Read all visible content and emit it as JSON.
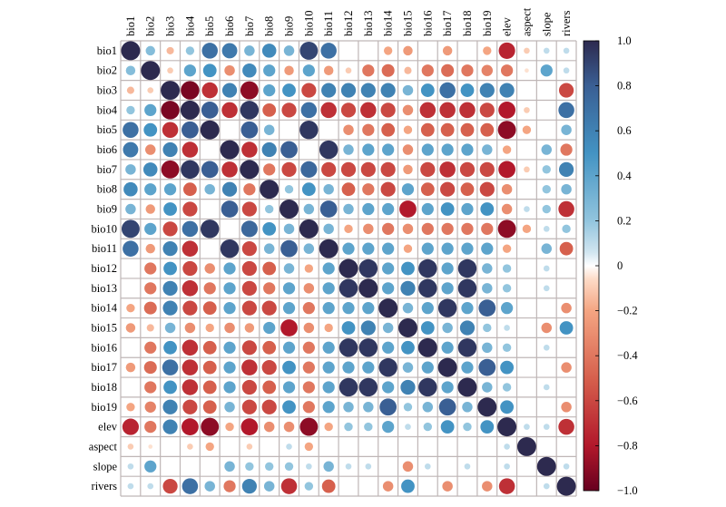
{
  "chart_data": {
    "type": "heatmap",
    "variables": [
      "bio1",
      "bio2",
      "bio3",
      "bio4",
      "bio5",
      "bio6",
      "bio7",
      "bio8",
      "bio9",
      "bio10",
      "bio11",
      "bio12",
      "bio13",
      "bio14",
      "bio15",
      "bio16",
      "bio17",
      "bio18",
      "bio19",
      "elev",
      "aspect",
      "slope",
      "rivers"
    ],
    "matrix": [
      [
        1.0,
        0.25,
        -0.15,
        0.2,
        0.7,
        0.65,
        0.3,
        0.55,
        0.3,
        0.9,
        0.7,
        0,
        0,
        -0.2,
        -0.25,
        0,
        -0.25,
        0,
        -0.2,
        -0.75,
        -0.1,
        0.1,
        0.1
      ],
      [
        0.25,
        1.0,
        -0.1,
        0.4,
        0.5,
        -0.3,
        0.55,
        0.4,
        -0.25,
        0.4,
        -0.25,
        -0.1,
        -0.4,
        -0.45,
        -0.15,
        -0.4,
        -0.45,
        -0.4,
        -0.35,
        -0.4,
        -0.05,
        0.4,
        0.1
      ],
      [
        -0.15,
        -0.1,
        1.0,
        -0.95,
        -0.7,
        0.6,
        -0.9,
        0.4,
        0.5,
        -0.6,
        0.6,
        0.6,
        0.6,
        0.6,
        0.3,
        0.5,
        0.7,
        0.5,
        0.6,
        0.6,
        0,
        0,
        -0.6
      ],
      [
        0.2,
        0.4,
        -0.95,
        1.0,
        0.8,
        -0.7,
        0.95,
        -0.5,
        -0.6,
        0.7,
        -0.7,
        -0.6,
        -0.7,
        -0.6,
        -0.3,
        -0.7,
        -0.7,
        -0.7,
        -0.6,
        -0.8,
        -0.1,
        0,
        0.7
      ],
      [
        0.7,
        0.5,
        -0.7,
        0.8,
        1.0,
        0,
        0.8,
        0.3,
        0,
        0.95,
        0,
        -0.3,
        -0.4,
        -0.5,
        -0.2,
        -0.5,
        -0.5,
        -0.5,
        -0.5,
        -0.9,
        -0.2,
        0,
        0.3
      ],
      [
        0.65,
        -0.3,
        0.6,
        -0.7,
        0,
        1.0,
        -0.7,
        0.6,
        0.8,
        0,
        0.95,
        0.3,
        0.4,
        0.4,
        -0.3,
        0.4,
        0.4,
        0.4,
        0.3,
        -0.2,
        0,
        0.3,
        -0.4
      ],
      [
        0.3,
        0.55,
        -0.9,
        0.95,
        0.8,
        -0.7,
        1.0,
        -0.4,
        -0.6,
        0.75,
        -0.6,
        -0.6,
        -0.6,
        -0.6,
        -0.25,
        -0.6,
        -0.7,
        -0.6,
        -0.6,
        -0.8,
        -0.1,
        0.2,
        0.6
      ],
      [
        0.55,
        0.4,
        0.4,
        -0.5,
        0.3,
        0.6,
        -0.4,
        1.0,
        0.2,
        0.5,
        0.3,
        -0.5,
        -0.4,
        -0.6,
        0.4,
        -0.5,
        -0.6,
        -0.5,
        -0.6,
        -0.3,
        0,
        0.2,
        0.3
      ],
      [
        0.3,
        -0.25,
        0.5,
        -0.6,
        0,
        0.8,
        -0.6,
        0.2,
        1.0,
        0.3,
        0.8,
        0.3,
        0.4,
        0.4,
        -0.8,
        0.4,
        0.5,
        0.4,
        0.5,
        -0.3,
        0.1,
        0.2,
        -0.7
      ],
      [
        0.9,
        0.4,
        -0.6,
        0.7,
        0.95,
        0,
        0.75,
        0.5,
        0.3,
        1.0,
        0.3,
        -0.2,
        -0.3,
        -0.4,
        -0.3,
        -0.4,
        -0.4,
        -0.4,
        -0.4,
        -0.9,
        -0.2,
        0.1,
        0.2
      ],
      [
        0.7,
        -0.25,
        0.6,
        -0.7,
        0,
        0.95,
        -0.6,
        0.3,
        0.8,
        0.3,
        1.0,
        0.4,
        0.4,
        0.4,
        -0.2,
        0.4,
        0.4,
        0.4,
        0.4,
        -0.2,
        0,
        0.3,
        -0.5
      ],
      [
        0,
        -0.4,
        0.5,
        -0.6,
        -0.3,
        0.4,
        -0.6,
        -0.5,
        0.3,
        -0.2,
        0.4,
        1.0,
        0.95,
        0.4,
        0.5,
        0.95,
        0.4,
        0.95,
        0.3,
        0.2,
        0,
        0.1,
        0
      ],
      [
        0,
        -0.4,
        0.6,
        -0.7,
        -0.4,
        0.4,
        -0.6,
        -0.4,
        0.4,
        -0.3,
        0.4,
        0.95,
        1.0,
        0.4,
        0.6,
        0.95,
        0.4,
        0.95,
        0.3,
        0.2,
        0,
        0.1,
        0
      ],
      [
        -0.2,
        -0.45,
        0.6,
        -0.6,
        -0.5,
        0.4,
        -0.6,
        -0.6,
        0.4,
        -0.4,
        0.4,
        0.4,
        0.4,
        1.0,
        0.3,
        0.4,
        0.95,
        0.4,
        0.8,
        0.4,
        0,
        0,
        -0.3
      ],
      [
        -0.25,
        -0.15,
        0.3,
        -0.3,
        -0.2,
        -0.3,
        -0.25,
        0.4,
        -0.8,
        -0.3,
        -0.2,
        0.5,
        0.6,
        0.3,
        1.0,
        0.5,
        0.3,
        0.6,
        0.2,
        0.1,
        0,
        -0.3,
        0.5
      ],
      [
        0,
        -0.4,
        0.5,
        -0.7,
        -0.5,
        0.4,
        -0.6,
        -0.5,
        0.4,
        -0.4,
        0.4,
        0.95,
        0.95,
        0.4,
        0.5,
        1.0,
        0.4,
        0.95,
        0.3,
        0.2,
        0,
        0.1,
        0
      ],
      [
        -0.25,
        -0.45,
        0.7,
        -0.7,
        -0.5,
        0.4,
        -0.7,
        -0.6,
        0.5,
        -0.4,
        0.4,
        0.4,
        0.4,
        0.95,
        0.3,
        0.4,
        1.0,
        0.4,
        0.8,
        0.5,
        0,
        0,
        -0.3
      ],
      [
        0,
        -0.4,
        0.5,
        -0.7,
        -0.5,
        0.4,
        -0.6,
        -0.5,
        0.4,
        -0.4,
        0.4,
        0.95,
        0.95,
        0.4,
        0.6,
        0.95,
        0.4,
        1.0,
        0.3,
        0.2,
        0,
        0.1,
        0
      ],
      [
        -0.2,
        -0.35,
        0.6,
        -0.6,
        -0.5,
        0.3,
        -0.6,
        -0.6,
        0.5,
        -0.4,
        0.4,
        0.3,
        0.3,
        0.8,
        0.2,
        0.3,
        0.8,
        0.3,
        1.0,
        0.5,
        0,
        0,
        -0.3
      ],
      [
        -0.75,
        -0.4,
        0.6,
        -0.8,
        -0.9,
        -0.2,
        -0.8,
        -0.3,
        -0.3,
        -0.9,
        -0.2,
        0.2,
        0.2,
        0.4,
        0.1,
        0.2,
        0.5,
        0.2,
        0.5,
        1.0,
        0.1,
        0.1,
        -0.7
      ],
      [
        -0.1,
        -0.05,
        0,
        -0.1,
        -0.2,
        0,
        -0.1,
        0,
        0.1,
        -0.2,
        0,
        0,
        0,
        0,
        0,
        0,
        0,
        0,
        0,
        0.1,
        1.0,
        0,
        0
      ],
      [
        0.1,
        0.4,
        0,
        0,
        0,
        0.3,
        0.2,
        0.2,
        0.2,
        0.1,
        0.3,
        0.1,
        0.1,
        0,
        -0.3,
        0.1,
        0,
        0.1,
        0,
        0.1,
        0,
        1.0,
        0.1
      ],
      [
        0.1,
        0.1,
        -0.6,
        0.7,
        0.3,
        -0.4,
        0.6,
        0.3,
        -0.7,
        0.2,
        -0.5,
        0,
        0,
        -0.3,
        0.5,
        0,
        -0.3,
        0,
        -0.3,
        -0.7,
        0,
        0.1,
        1.0
      ]
    ],
    "value_range": [
      -1,
      1
    ],
    "colorbar_ticks": [
      "1.0",
      "0.8",
      "0.6",
      "0.4",
      "0.2",
      "0",
      "−0.2",
      "−0.4",
      "−0.6",
      "−0.8",
      "−1.0"
    ],
    "grid": true,
    "legend_placement": "right (colorbar)",
    "colors": {
      "negative_max": "#67001f",
      "negative_mid": "#d6604d",
      "negative_low": "#fddbc7",
      "neutral": "#ffffff",
      "positive_low": "#d1e5f0",
      "positive_mid": "#4393c3",
      "positive_max": "#2d2a4f",
      "grid": "#bfb6b6"
    }
  }
}
